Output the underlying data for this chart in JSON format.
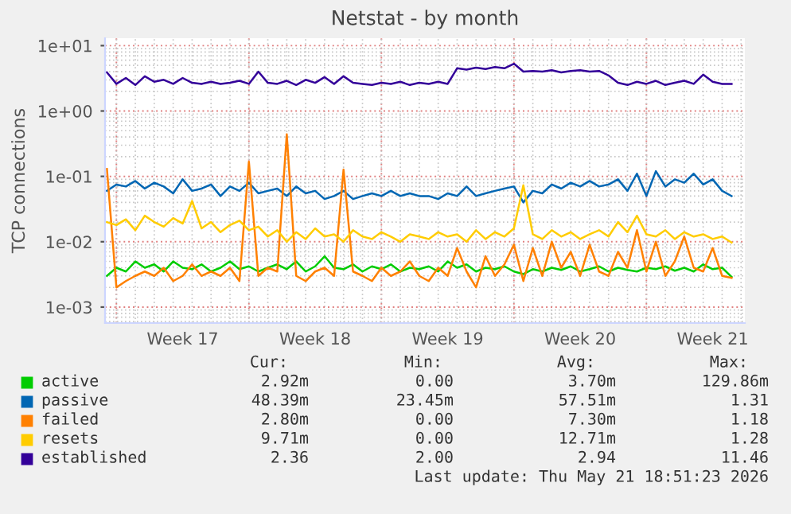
{
  "chart_data": {
    "type": "line",
    "title": "Netstat - by month",
    "ylabel": "TCP connections",
    "log": "y",
    "grid": true,
    "legend": "bottom",
    "ylim": [
      0.00057,
      13
    ],
    "yticks": [
      {
        "value": 0.001,
        "label": "1e-03"
      },
      {
        "value": 0.01,
        "label": "1e-02"
      },
      {
        "value": 0.1,
        "label": "1e-01"
      },
      {
        "value": 1,
        "label": "1e+00"
      },
      {
        "value": 10,
        "label": "1e+01"
      }
    ],
    "xlim": [
      "2026-04-19T09:36",
      "2026-05-23T04:48"
    ],
    "xticks": [
      {
        "value": "2026-04-23T12:00",
        "label": "Week 17"
      },
      {
        "value": "2026-04-30T12:00",
        "label": "Week 18"
      },
      {
        "value": "2026-05-07T12:00",
        "label": "Week 19"
      },
      {
        "value": "2026-05-14T12:00",
        "label": "Week 20"
      },
      {
        "value": "2026-05-21T12:00",
        "label": "Week 21"
      }
    ],
    "x": [
      "2026-04-19T12:00",
      "2026-04-20T00:00",
      "2026-04-20T12:00",
      "2026-04-21T00:00",
      "2026-04-21T12:00",
      "2026-04-22T00:00",
      "2026-04-22T12:00",
      "2026-04-23T00:00",
      "2026-04-23T12:00",
      "2026-04-24T00:00",
      "2026-04-24T12:00",
      "2026-04-25T00:00",
      "2026-04-25T12:00",
      "2026-04-26T00:00",
      "2026-04-26T12:00",
      "2026-04-27T00:00",
      "2026-04-27T12:00",
      "2026-04-28T00:00",
      "2026-04-28T12:00",
      "2026-04-29T00:00",
      "2026-04-29T12:00",
      "2026-04-30T00:00",
      "2026-04-30T12:00",
      "2026-05-01T00:00",
      "2026-05-01T12:00",
      "2026-05-02T00:00",
      "2026-05-02T12:00",
      "2026-05-03T00:00",
      "2026-05-03T12:00",
      "2026-05-04T00:00",
      "2026-05-04T12:00",
      "2026-05-05T00:00",
      "2026-05-05T12:00",
      "2026-05-06T00:00",
      "2026-05-06T12:00",
      "2026-05-07T00:00",
      "2026-05-07T12:00",
      "2026-05-08T00:00",
      "2026-05-08T12:00",
      "2026-05-09T00:00",
      "2026-05-09T12:00",
      "2026-05-10T00:00",
      "2026-05-10T12:00",
      "2026-05-11T00:00",
      "2026-05-11T12:00",
      "2026-05-12T00:00",
      "2026-05-12T12:00",
      "2026-05-13T00:00",
      "2026-05-13T12:00",
      "2026-05-14T00:00",
      "2026-05-14T12:00",
      "2026-05-15T00:00",
      "2026-05-15T12:00",
      "2026-05-16T00:00",
      "2026-05-16T12:00",
      "2026-05-17T00:00",
      "2026-05-17T12:00",
      "2026-05-18T00:00",
      "2026-05-18T12:00",
      "2026-05-19T00:00",
      "2026-05-19T12:00",
      "2026-05-20T00:00",
      "2026-05-20T12:00",
      "2026-05-21T00:00",
      "2026-05-21T12:00",
      "2026-05-22T00:00",
      "2026-05-22T12:00"
    ],
    "series": [
      {
        "name": "active",
        "color": "#00cc00",
        "values": [
          0.003,
          0.004,
          0.0035,
          0.005,
          0.004,
          0.0045,
          0.0035,
          0.005,
          0.004,
          0.0038,
          0.0045,
          0.0035,
          0.004,
          0.005,
          0.0038,
          0.0042,
          0.0035,
          0.004,
          0.0045,
          0.0038,
          0.005,
          0.0035,
          0.0042,
          0.006,
          0.004,
          0.0038,
          0.0045,
          0.0035,
          0.0042,
          0.0038,
          0.0045,
          0.0035,
          0.004,
          0.0038,
          0.0042,
          0.0035,
          0.005,
          0.004,
          0.0045,
          0.0035,
          0.004,
          0.0038,
          0.0042,
          0.0035,
          0.0032,
          0.0038,
          0.0035,
          0.004,
          0.0037,
          0.0042,
          0.0035,
          0.0038,
          0.0042,
          0.0035,
          0.004,
          0.0037,
          0.0035,
          0.004,
          0.0038,
          0.0042,
          0.0036,
          0.004,
          0.0035,
          0.0045,
          0.0038,
          0.004,
          0.0029
        ]
      },
      {
        "name": "passive",
        "color": "#0066b3",
        "values": [
          0.06,
          0.075,
          0.07,
          0.085,
          0.065,
          0.08,
          0.07,
          0.055,
          0.09,
          0.06,
          0.065,
          0.075,
          0.05,
          0.07,
          0.06,
          0.08,
          0.055,
          0.06,
          0.065,
          0.05,
          0.07,
          0.055,
          0.06,
          0.045,
          0.05,
          0.06,
          0.045,
          0.05,
          0.055,
          0.05,
          0.06,
          0.05,
          0.055,
          0.05,
          0.05,
          0.045,
          0.055,
          0.05,
          0.07,
          0.05,
          0.055,
          0.06,
          0.065,
          0.07,
          0.04,
          0.06,
          0.055,
          0.075,
          0.065,
          0.08,
          0.07,
          0.085,
          0.07,
          0.075,
          0.09,
          0.06,
          0.11,
          0.05,
          0.12,
          0.07,
          0.09,
          0.08,
          0.11,
          0.075,
          0.09,
          0.06,
          0.05
        ]
      },
      {
        "name": "failed",
        "color": "#ff8000",
        "values": [
          0.13,
          0.002,
          0.0025,
          0.003,
          0.0035,
          0.003,
          0.004,
          0.0025,
          0.003,
          0.0045,
          0.003,
          0.0035,
          0.003,
          0.004,
          0.0025,
          0.168,
          0.003,
          0.004,
          0.0035,
          0.44,
          0.003,
          0.0025,
          0.0035,
          0.004,
          0.003,
          0.127,
          0.0035,
          0.003,
          0.0025,
          0.004,
          0.003,
          0.0035,
          0.005,
          0.003,
          0.0025,
          0.004,
          0.003,
          0.008,
          0.0035,
          0.002,
          0.006,
          0.003,
          0.0045,
          0.009,
          0.0025,
          0.008,
          0.003,
          0.01,
          0.004,
          0.007,
          0.003,
          0.009,
          0.0035,
          0.003,
          0.007,
          0.004,
          0.015,
          0.0035,
          0.01,
          0.003,
          0.005,
          0.012,
          0.004,
          0.0035,
          0.008,
          0.003,
          0.0028
        ]
      },
      {
        "name": "resets",
        "color": "#ffcc00",
        "values": [
          0.02,
          0.018,
          0.022,
          0.015,
          0.025,
          0.02,
          0.017,
          0.023,
          0.019,
          0.042,
          0.016,
          0.02,
          0.014,
          0.018,
          0.021,
          0.015,
          0.017,
          0.012,
          0.015,
          0.01,
          0.014,
          0.011,
          0.016,
          0.012,
          0.013,
          0.01,
          0.015,
          0.012,
          0.011,
          0.014,
          0.012,
          0.01,
          0.013,
          0.012,
          0.011,
          0.014,
          0.012,
          0.013,
          0.01,
          0.015,
          0.011,
          0.014,
          0.012,
          0.016,
          0.073,
          0.013,
          0.011,
          0.015,
          0.012,
          0.014,
          0.011,
          0.013,
          0.015,
          0.012,
          0.02,
          0.014,
          0.025,
          0.013,
          0.012,
          0.015,
          0.011,
          0.014,
          0.012,
          0.013,
          0.011,
          0.012,
          0.0097
        ]
      },
      {
        "name": "established",
        "color": "#330099",
        "values": [
          3.9,
          2.6,
          3.2,
          2.5,
          3.4,
          2.8,
          3.0,
          2.6,
          3.2,
          2.7,
          2.6,
          2.8,
          2.6,
          2.7,
          2.9,
          2.6,
          4.0,
          2.7,
          2.6,
          2.9,
          2.5,
          3.0,
          2.7,
          3.3,
          2.6,
          3.4,
          2.7,
          2.6,
          2.5,
          2.7,
          2.6,
          2.8,
          2.5,
          2.7,
          2.6,
          2.8,
          2.6,
          4.5,
          4.3,
          4.6,
          4.4,
          4.7,
          4.5,
          5.3,
          4.0,
          4.1,
          4.0,
          4.2,
          3.9,
          4.1,
          4.2,
          4.0,
          4.1,
          3.5,
          2.7,
          2.5,
          2.8,
          2.6,
          2.9,
          2.5,
          2.7,
          2.9,
          2.6,
          3.6,
          2.8,
          2.6,
          2.6
        ]
      }
    ],
    "annotations": [
      "Cur:",
      "Min:",
      "Avg:",
      "Max:",
      "2.92m",
      "0.00",
      "3.70m",
      "129.86m",
      "48.39m",
      "23.45m",
      "57.51m",
      "1.31",
      "2.80m",
      "0.00",
      "7.30m",
      "1.18",
      "9.71m",
      "0.00",
      "12.71m",
      "1.28",
      "2.36",
      "2.00",
      "2.94",
      "11.46",
      "Last update: Thu May 21 18:51:23 2026"
    ]
  }
}
